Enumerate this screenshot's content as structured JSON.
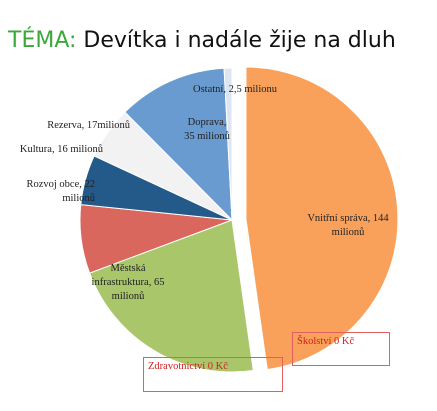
{
  "title_prefix": "TÉMA:",
  "chart_data": {
    "type": "pie",
    "title": "Devítka i nadále žije na dluh",
    "values": [
      144,
      65,
      22,
      16,
      17,
      35,
      2.5,
      0,
      0
    ],
    "value_labels": [
      "Vnitřní správa, 144\nmilionů",
      "Městská\ninfrastruktura, 65\nmilionů",
      "Rozvoj obce, 22\nmilionů",
      "Kultura, 16 milionů",
      "Rezerva, 17milionů",
      "Doprava,\n35 milionů",
      "Ostatní, 2,5 milionu",
      "Školství 0 Kč",
      "Zdravotnictví 0 Kč"
    ],
    "colors": [
      "#f9a15a",
      "#a9c66b",
      "#d9675e",
      "#235a8a",
      "#f2f2f2",
      "#6a9bd0",
      "#dce6f0",
      "#ffffff",
      "#ffffff"
    ]
  }
}
